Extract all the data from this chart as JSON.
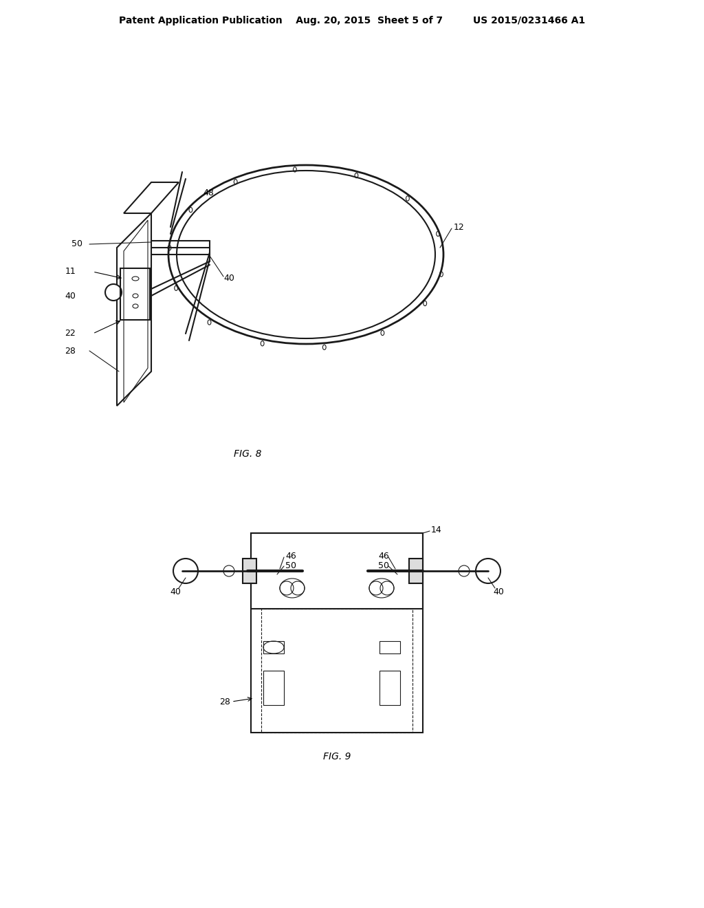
{
  "background_color": "#ffffff",
  "header_text": "Patent Application Publication    Aug. 20, 2015  Sheet 5 of 7         US 2015/0231466 A1",
  "fig8_label": "FIG. 8",
  "fig9_label": "FIG. 9",
  "line_color": "#1a1a1a",
  "light_gray": "#888888",
  "medium_gray": "#555555"
}
